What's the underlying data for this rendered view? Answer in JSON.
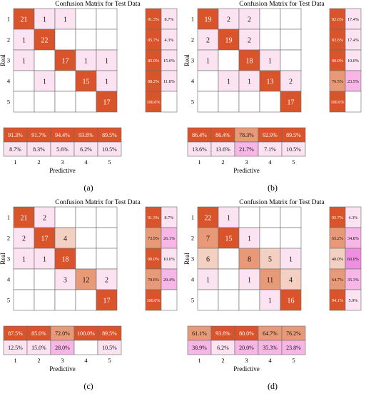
{
  "palette": {
    "high": "#d9542b",
    "mid": "#e89a78",
    "low": "#f3d0c2",
    "pinkLow": "#fbe3f2",
    "pinkMid": "#f6b6e6",
    "pinkHigh": "#ef8fe0",
    "border": "#6a6a6a"
  },
  "chart_data": [
    {
      "type": "heatmap",
      "panel_label": "(a)",
      "title": "Confusion Matrix for Test Data",
      "ylabel": "Real",
      "xlabel": "Predictive",
      "row_labels": [
        "1",
        "2",
        "3",
        "4",
        "5"
      ],
      "col_labels": [
        "1",
        "2",
        "3",
        "4",
        "5"
      ],
      "cells": [
        [
          21,
          1,
          1,
          null,
          null
        ],
        [
          1,
          22,
          null,
          null,
          null
        ],
        [
          1,
          null,
          17,
          1,
          1
        ],
        [
          null,
          1,
          null,
          15,
          1
        ],
        [
          null,
          null,
          null,
          null,
          17
        ]
      ],
      "row_summary": [
        [
          "91.3%",
          "8.7%"
        ],
        [
          "95.7%",
          "4.3%"
        ],
        [
          "85.0%",
          "15.0%"
        ],
        [
          "88.2%",
          "11.8%"
        ],
        [
          "100.0%",
          ""
        ]
      ],
      "col_summary": [
        [
          "91.3%",
          "8.7%"
        ],
        [
          "91.7%",
          "8.3%"
        ],
        [
          "94.4%",
          "5.6%"
        ],
        [
          "93.8%",
          "6.2%"
        ],
        [
          "89.5%",
          "10.5%"
        ]
      ]
    },
    {
      "type": "heatmap",
      "panel_label": "(b)",
      "title": "Confusion Matrix for Test Data",
      "ylabel": "Real",
      "xlabel": "Predictive",
      "row_labels": [
        "1",
        "2",
        "3",
        "4",
        "5"
      ],
      "col_labels": [
        "1",
        "2",
        "3",
        "4",
        "5"
      ],
      "cells": [
        [
          19,
          2,
          2,
          null,
          null
        ],
        [
          2,
          19,
          2,
          null,
          null
        ],
        [
          1,
          null,
          18,
          1,
          null
        ],
        [
          null,
          1,
          1,
          13,
          2
        ],
        [
          null,
          null,
          null,
          null,
          17
        ]
      ],
      "row_summary": [
        [
          "82.6%",
          "17.4%"
        ],
        [
          "82.6%",
          "17.4%"
        ],
        [
          "90.0%",
          "10.0%"
        ],
        [
          "76.5%",
          "23.5%"
        ],
        [
          "100.0%",
          ""
        ]
      ],
      "col_summary": [
        [
          "86.4%",
          "13.6%"
        ],
        [
          "86.4%",
          "13.6%"
        ],
        [
          "78.3%",
          "21.7%"
        ],
        [
          "92.9%",
          "7.1%"
        ],
        [
          "89.5%",
          "10.5%"
        ]
      ]
    },
    {
      "type": "heatmap",
      "panel_label": "(c)",
      "title": "Confusion Matrix for Test Data",
      "ylabel": "Real",
      "xlabel": "Predictive",
      "row_labels": [
        "1",
        "2",
        "3",
        "4",
        "5"
      ],
      "col_labels": [
        "1",
        "2",
        "3",
        "4",
        "5"
      ],
      "cells": [
        [
          21,
          2,
          null,
          null,
          null
        ],
        [
          2,
          17,
          4,
          null,
          null
        ],
        [
          1,
          1,
          18,
          null,
          null
        ],
        [
          null,
          null,
          3,
          12,
          2
        ],
        [
          null,
          null,
          null,
          null,
          17
        ]
      ],
      "row_summary": [
        [
          "91.3%",
          "8.7%"
        ],
        [
          "73.9%",
          "26.1%"
        ],
        [
          "90.0%",
          "10.0%"
        ],
        [
          "70.6%",
          "29.4%"
        ],
        [
          "100.0%",
          ""
        ]
      ],
      "col_summary": [
        [
          "87.5%",
          "12.5%"
        ],
        [
          "85.0%",
          "15.0%"
        ],
        [
          "72.0%",
          "28.0%"
        ],
        [
          "100.0%",
          ""
        ],
        [
          "89.5%",
          "10.5%"
        ]
      ]
    },
    {
      "type": "heatmap",
      "panel_label": "(d)",
      "title": "Confusion Matrix for Test Data",
      "ylabel": "Real",
      "xlabel": "Predictive",
      "row_labels": [
        "1",
        "2",
        "3",
        "4",
        "5"
      ],
      "col_labels": [
        "1",
        "2",
        "3",
        "4",
        "5"
      ],
      "cells": [
        [
          22,
          1,
          null,
          null,
          null
        ],
        [
          7,
          15,
          1,
          null,
          null
        ],
        [
          6,
          null,
          8,
          5,
          1
        ],
        [
          1,
          null,
          1,
          11,
          4
        ],
        [
          null,
          null,
          null,
          1,
          16
        ]
      ],
      "row_summary": [
        [
          "95.7%",
          "4.3%"
        ],
        [
          "65.2%",
          "34.8%"
        ],
        [
          "40.0%",
          "60.0%"
        ],
        [
          "64.7%",
          "35.3%"
        ],
        [
          "94.1%",
          "5.9%"
        ]
      ],
      "col_summary": [
        [
          "61.1%",
          "38.9%"
        ],
        [
          "93.8%",
          "6.2%"
        ],
        [
          "80.0%",
          "20.0%"
        ],
        [
          "64.7%",
          "35.3%"
        ],
        [
          "76.2%",
          "23.8%"
        ]
      ]
    }
  ]
}
